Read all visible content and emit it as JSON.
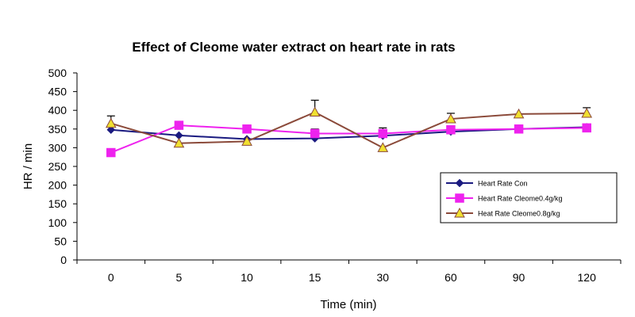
{
  "chart_data": {
    "type": "line",
    "title": "Effect of Cleome water extract on heart rate in rats",
    "xlabel": "Time (min)",
    "ylabel": "HR / min",
    "categories": [
      "0",
      "5",
      "10",
      "15",
      "30",
      "60",
      "90",
      "120"
    ],
    "ylim": [
      0,
      500
    ],
    "yticks": [
      0,
      50,
      100,
      150,
      200,
      250,
      300,
      350,
      400,
      450,
      500
    ],
    "grid": false,
    "legend_position": "right",
    "series": [
      {
        "name": "Heart Rate Con",
        "color": "#1a1a80",
        "marker": "diamond",
        "values": [
          348,
          333,
          323,
          325,
          332,
          343,
          350,
          355
        ],
        "errors": [
          0,
          0,
          0,
          0,
          0,
          0,
          0,
          0
        ]
      },
      {
        "name": "Heart Rate Cleome0.4g/kg",
        "color": "#ee22ee",
        "marker": "square",
        "values": [
          287,
          360,
          350,
          338,
          338,
          348,
          350,
          353
        ],
        "errors": [
          0,
          8,
          10,
          12,
          15,
          10,
          8,
          10
        ]
      },
      {
        "name": "Heat Rate Cleome0.8g/kg",
        "color": "#8b4a3a",
        "marker_fill": "#f0e030",
        "marker": "triangle",
        "values": [
          365,
          312,
          317,
          395,
          300,
          377,
          390,
          392
        ],
        "errors": [
          20,
          0,
          0,
          32,
          0,
          15,
          0,
          15
        ]
      }
    ]
  }
}
